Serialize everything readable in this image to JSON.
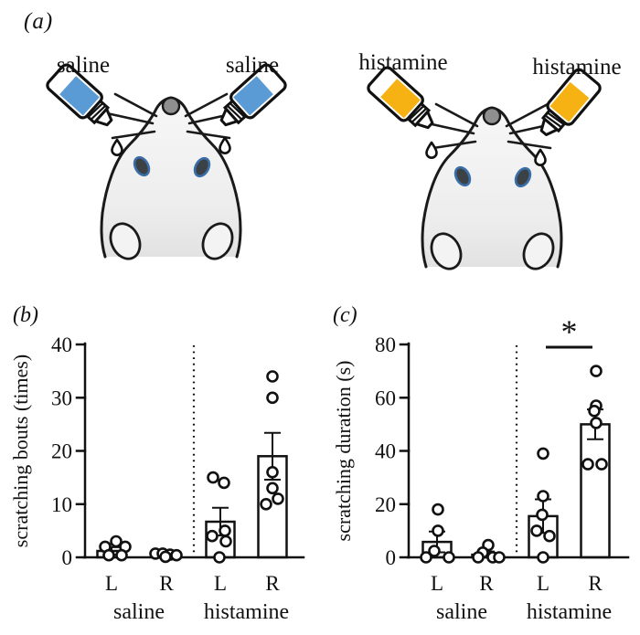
{
  "panel_a": {
    "label": "(a)",
    "scenes": [
      {
        "name": "saline-both-cheeks",
        "labels": [
          "saline",
          "saline"
        ],
        "liquid_color": "#5B9BD5"
      },
      {
        "name": "histamine-both-cheeks",
        "labels": [
          "histamine",
          "histamine"
        ],
        "liquid_color": "#F5B212"
      }
    ],
    "mouse_colors": {
      "body_light": "#f7f7f7",
      "body_dark": "#e2e2e2",
      "nose": "#8f8f8f",
      "ear_fill": "#3c4146",
      "ear_ring": "#3a6ea8",
      "foot": "#f3f3f3"
    }
  },
  "chart_data": [
    {
      "id": "b",
      "type": "bar",
      "panel_label": "(b)",
      "ylabel": "scratching bouts (times)",
      "ylim": [
        0,
        40
      ],
      "yticks": [
        0,
        10,
        20,
        30,
        40
      ],
      "grid": false,
      "groups": [
        "saline",
        "histamine"
      ],
      "categories": [
        "saline L",
        "saline R",
        "histamine L",
        "histamine R"
      ],
      "bars": [
        {
          "group": "saline",
          "side": "L",
          "mean": 1.2,
          "sem": 0.7,
          "points": [
            3,
            2,
            2,
            0.4,
            0.4
          ],
          "point_dx": [
            5,
            -7,
            15,
            -3,
            11
          ]
        },
        {
          "group": "saline",
          "side": "R",
          "mean": 0.4,
          "sem": 0.2,
          "points": [
            0.7,
            0.7,
            0.5,
            0.4,
            0.1
          ],
          "point_dx": [
            -12,
            -4,
            4,
            11,
            -1
          ]
        },
        {
          "group": "histamine",
          "side": "L",
          "mean": 6.7,
          "sem": 2.6,
          "points": [
            15,
            14,
            5,
            4,
            3,
            0
          ],
          "point_dx": [
            -8,
            4,
            5,
            -9,
            6,
            -1
          ]
        },
        {
          "group": "histamine",
          "side": "R",
          "mean": 19,
          "sem": 4.4,
          "points": [
            34,
            30,
            16,
            13,
            11,
            10
          ],
          "point_dx": [
            0,
            0,
            0,
            0,
            6,
            -7
          ]
        }
      ],
      "significance": null
    },
    {
      "id": "c",
      "type": "bar",
      "panel_label": "(c)",
      "ylabel": "scratching duration (s)",
      "ylim": [
        0,
        80
      ],
      "yticks": [
        0,
        20,
        40,
        60,
        80
      ],
      "grid": false,
      "groups": [
        "saline",
        "histamine"
      ],
      "categories": [
        "saline L",
        "saline R",
        "histamine L",
        "histamine R"
      ],
      "bars": [
        {
          "group": "saline",
          "side": "L",
          "mean": 5.8,
          "sem": 3.9,
          "points": [
            18,
            10,
            2.4,
            0,
            0
          ],
          "point_dx": [
            1,
            1,
            -3,
            -12,
            13
          ]
        },
        {
          "group": "saline",
          "side": "R",
          "mean": 1,
          "sem": 1.2,
          "points": [
            4.6,
            1.8,
            0,
            0,
            0
          ],
          "point_dx": [
            2,
            -4,
            -9,
            7,
            14
          ]
        },
        {
          "group": "histamine",
          "side": "L",
          "mean": 15.5,
          "sem": 6.3,
          "points": [
            39,
            23,
            16,
            10,
            8,
            0
          ],
          "point_dx": [
            0,
            0,
            -1,
            -7,
            7,
            0
          ]
        },
        {
          "group": "histamine",
          "side": "R",
          "mean": 50,
          "sem": 5.6,
          "points": [
            70,
            57,
            55,
            50.5,
            35,
            35
          ],
          "point_dx": [
            1,
            1,
            -1,
            1,
            -8,
            7
          ]
        }
      ],
      "significance": {
        "label": "*",
        "color": "#FA4A4A",
        "between": [
          "histamine L",
          "histamine R"
        ]
      }
    }
  ]
}
